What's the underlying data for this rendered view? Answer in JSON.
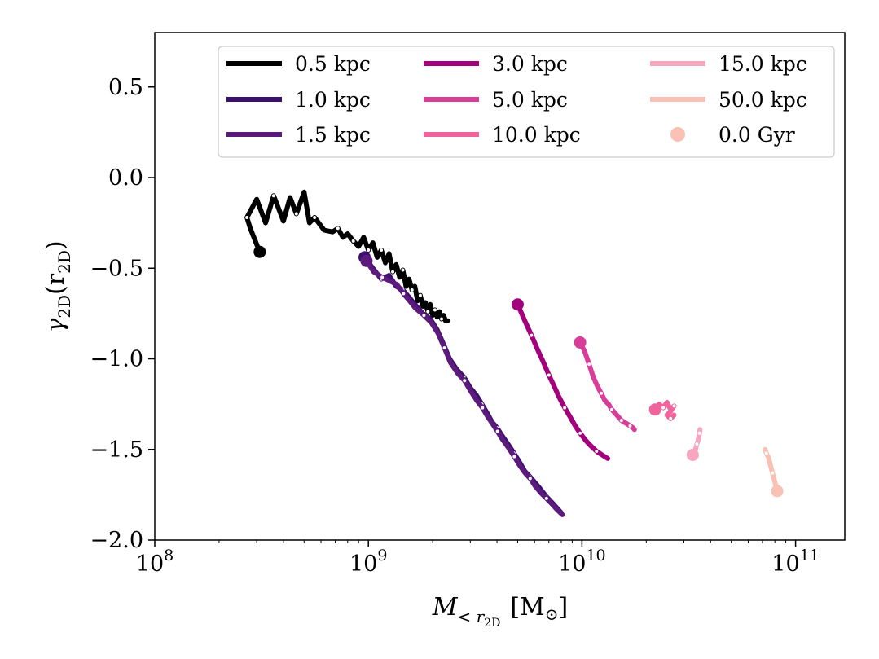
{
  "chart_data": {
    "type": "line",
    "xscale": "log",
    "xlim": [
      100000000,
      170000000000
    ],
    "ylim": [
      -2.0,
      0.8
    ],
    "xlabel_prefix": "M",
    "xlabel_subscript": "< r",
    "xlabel_subsub": "2D",
    "xlabel_unit": "[M",
    "xlabel_unit_symbol": "⊙",
    "xlabel_unit_close": "]",
    "ylabel_symbol": "γ",
    "ylabel_sub": "2D",
    "ylabel_open": "(r",
    "ylabel_close": ")",
    "yticks": [
      {
        "value": 0.5,
        "label": "0.5"
      },
      {
        "value": 0.0,
        "label": "0.0"
      },
      {
        "value": -0.5,
        "label": "−0.5"
      },
      {
        "value": -1.0,
        "label": "−1.0"
      },
      {
        "value": -1.5,
        "label": "−1.5"
      },
      {
        "value": -2.0,
        "label": "−2.0"
      }
    ],
    "xticks": [
      {
        "value": 100000000,
        "base": "10",
        "exp": "8"
      },
      {
        "value": 1000000000,
        "base": "10",
        "exp": "9"
      },
      {
        "value": 10000000000,
        "base": "10",
        "exp": "10"
      },
      {
        "value": 100000000000,
        "base": "10",
        "exp": "11"
      }
    ],
    "legend": {
      "placement": "top-right",
      "columns": 3,
      "marker_label": "0.0 Gyr",
      "marker_color": "#f9c0b4"
    },
    "series": [
      {
        "name": "0.5 kpc",
        "color": "#000000",
        "x": [
          310000000,
          280000000,
          270000000,
          300000000,
          330000000,
          360000000,
          400000000,
          430000000,
          460000000,
          500000000,
          530000000,
          560000000,
          620000000,
          680000000,
          720000000,
          760000000,
          800000000,
          850000000,
          900000000,
          950000000,
          1000000000,
          1050000000,
          1100000000,
          1150000000,
          1200000000,
          1250000000,
          1300000000,
          1350000000,
          1400000000,
          1450000000,
          1500000000,
          1550000000,
          1600000000,
          1650000000,
          1700000000,
          1750000000,
          1800000000,
          1850000000,
          1900000000,
          1950000000,
          2000000000,
          2050000000,
          2100000000,
          2150000000,
          2200000000,
          2250000000,
          2300000000,
          2350000000
        ],
        "y": [
          -0.41,
          -0.28,
          -0.22,
          -0.12,
          -0.25,
          -0.1,
          -0.24,
          -0.11,
          -0.2,
          -0.08,
          -0.25,
          -0.22,
          -0.29,
          -0.3,
          -0.28,
          -0.33,
          -0.31,
          -0.35,
          -0.38,
          -0.33,
          -0.4,
          -0.36,
          -0.44,
          -0.4,
          -0.47,
          -0.42,
          -0.52,
          -0.48,
          -0.55,
          -0.51,
          -0.6,
          -0.56,
          -0.62,
          -0.6,
          -0.68,
          -0.65,
          -0.71,
          -0.69,
          -0.74,
          -0.7,
          -0.76,
          -0.73,
          -0.77,
          -0.74,
          -0.78,
          -0.76,
          -0.79,
          -0.79
        ]
      },
      {
        "name": "1.0 kpc",
        "color": "#3b0f6f",
        "x": [
          960000000,
          1050000000,
          1150000000,
          1250000000,
          1350000000,
          1450000000,
          1550000000,
          1650000000,
          1800000000,
          1950000000,
          2100000000,
          2250000000,
          2400000000,
          2600000000,
          2800000000,
          3000000000,
          3200000000,
          3400000000,
          3600000000,
          3800000000,
          4000000000,
          4200000000,
          4500000000,
          4800000000,
          5100000000,
          5400000000,
          5700000000,
          6000000000,
          6400000000,
          6800000000,
          7200000000,
          7600000000,
          8000000000
        ],
        "y": [
          -0.44,
          -0.5,
          -0.56,
          -0.54,
          -0.6,
          -0.62,
          -0.66,
          -0.7,
          -0.75,
          -0.78,
          -0.84,
          -0.92,
          -1.0,
          -1.06,
          -1.1,
          -1.16,
          -1.2,
          -1.25,
          -1.3,
          -1.35,
          -1.38,
          -1.42,
          -1.47,
          -1.52,
          -1.57,
          -1.62,
          -1.65,
          -1.68,
          -1.72,
          -1.76,
          -1.79,
          -1.82,
          -1.85
        ]
      },
      {
        "name": "1.5 kpc",
        "color": "#5c1a7d",
        "x": [
          980000000,
          1060000000,
          1160000000,
          1260000000,
          1360000000,
          1460000000,
          1560000000,
          1660000000,
          1820000000,
          1970000000,
          2120000000,
          2270000000,
          2420000000,
          2620000000,
          2820000000,
          3020000000,
          3220000000,
          3420000000,
          3620000000,
          3820000000,
          4020000000,
          4220000000,
          4520000000,
          4820000000,
          5120000000,
          5420000000,
          5720000000,
          6020000000,
          6420000000,
          6820000000,
          7220000000,
          7620000000,
          8100000000
        ],
        "y": [
          -0.46,
          -0.52,
          -0.55,
          -0.57,
          -0.59,
          -0.64,
          -0.68,
          -0.72,
          -0.76,
          -0.8,
          -0.86,
          -0.94,
          -1.02,
          -1.08,
          -1.12,
          -1.18,
          -1.23,
          -1.27,
          -1.32,
          -1.36,
          -1.4,
          -1.44,
          -1.49,
          -1.54,
          -1.59,
          -1.63,
          -1.66,
          -1.7,
          -1.74,
          -1.77,
          -1.8,
          -1.83,
          -1.86
        ]
      },
      {
        "name": "3.0 kpc",
        "color": "#a3007d",
        "x": [
          5000000000,
          5400000000,
          5800000000,
          6200000000,
          6600000000,
          7000000000,
          7400000000,
          7800000000,
          8300000000,
          8800000000,
          9300000000,
          9800000000,
          10400000000,
          11000000000,
          11700000000,
          12400000000,
          13200000000
        ],
        "y": [
          -0.7,
          -0.79,
          -0.87,
          -0.95,
          -1.02,
          -1.09,
          -1.15,
          -1.21,
          -1.27,
          -1.32,
          -1.37,
          -1.41,
          -1.45,
          -1.48,
          -1.51,
          -1.53,
          -1.55
        ]
      },
      {
        "name": "5.0 kpc",
        "color": "#d83d99",
        "x": [
          9800000000,
          10300000000,
          10800000000,
          11300000000,
          11800000000,
          12300000000,
          12800000000,
          13300000000,
          13800000000,
          14300000000,
          14800000000,
          15300000000,
          15800000000,
          16300000000,
          16800000000,
          17300000000,
          17600000000
        ],
        "y": [
          -0.91,
          -0.96,
          -1.03,
          -1.1,
          -1.15,
          -1.19,
          -1.23,
          -1.25,
          -1.28,
          -1.3,
          -1.32,
          -1.34,
          -1.35,
          -1.36,
          -1.37,
          -1.38,
          -1.39
        ]
      },
      {
        "name": "10.0 kpc",
        "color": "#f0649d",
        "x": [
          22000000000,
          23000000000,
          24000000000,
          25000000000,
          26000000000,
          27000000000,
          26000000000,
          25000000000,
          26000000000,
          27000000000
        ],
        "y": [
          -1.28,
          -1.25,
          -1.27,
          -1.24,
          -1.28,
          -1.26,
          -1.29,
          -1.31,
          -1.33,
          -1.31
        ]
      },
      {
        "name": "15.0 kpc",
        "color": "#f7a6bf",
        "x": [
          33000000000,
          34000000000,
          34500000000,
          35000000000,
          35200000000,
          35500000000,
          35700000000
        ],
        "y": [
          -1.53,
          -1.5,
          -1.47,
          -1.45,
          -1.43,
          -1.41,
          -1.39
        ]
      },
      {
        "name": "50.0 kpc",
        "color": "#f9c0b4",
        "x": [
          82000000000,
          80000000000,
          78000000000,
          76000000000,
          75000000000,
          73000000000,
          72000000000
        ],
        "y": [
          -1.73,
          -1.68,
          -1.63,
          -1.58,
          -1.55,
          -1.52,
          -1.5
        ]
      }
    ]
  }
}
